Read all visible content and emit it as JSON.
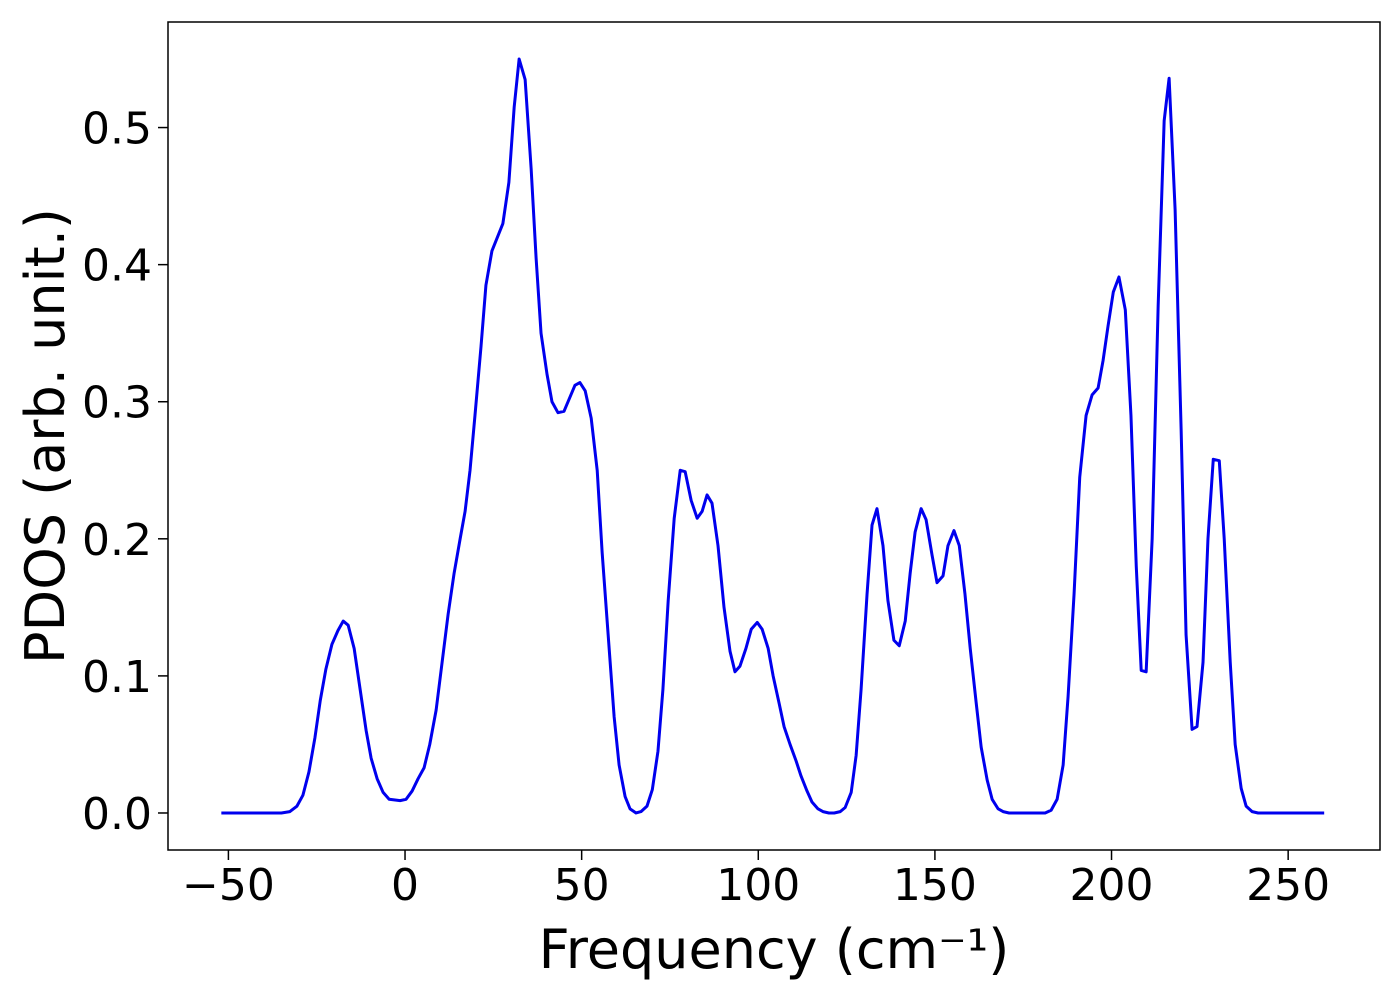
{
  "chart_data": {
    "type": "line",
    "xlabel": "Frequency (cm⁻¹)",
    "ylabel": "PDOS (arb. unit.)",
    "xlim": [
      -67.1,
      276
    ],
    "ylim": [
      -0.027,
      0.577
    ],
    "xticks": [
      {
        "value": -50,
        "label": "−50"
      },
      0,
      50,
      100,
      150,
      200,
      250
    ],
    "yticks": [
      {
        "value": 0,
        "label": "0.0"
      },
      0.1,
      0.2,
      0.3,
      0.4,
      0.5
    ],
    "series": [
      {
        "color": "#0000ee",
        "x": [
          -52,
          -35,
          -32.6,
          -30.6,
          -28.9,
          -27.2,
          -25.5,
          -24,
          -22.4,
          -20.7,
          -19,
          -17.5,
          -16.1,
          -14.4,
          -12.7,
          -11,
          -9.6,
          -7.9,
          -6.2,
          -4.5,
          -1.4,
          0.3,
          2,
          3.7,
          5.4,
          7,
          8.8,
          10.5,
          12.2,
          13.9,
          15.6,
          17,
          18.4,
          19.8,
          21.5,
          22.9,
          24.6,
          27.7,
          29.4,
          30.9,
          32.3,
          34,
          35.7,
          37.1,
          38.5,
          40.2,
          41.6,
          43.3,
          45,
          48.1,
          49.5,
          51,
          52.7,
          54.4,
          55.8,
          57.5,
          59.2,
          60.6,
          62.3,
          63.7,
          65.4,
          66.8,
          68.5,
          70,
          71.6,
          73,
          74.5,
          76.2,
          77.9,
          79.3,
          81,
          82.7,
          84.1,
          85.5,
          86.9,
          88.6,
          90.3,
          92,
          93.4,
          94.8,
          96.5,
          98,
          99.7,
          101.1,
          102.8,
          104.2,
          105.9,
          107.3,
          109,
          110.7,
          112.1,
          113.8,
          115.2,
          116.9,
          118.3,
          120,
          121.5,
          123.2,
          124.6,
          126.3,
          127.7,
          129.1,
          130.8,
          132.2,
          133.6,
          135.3,
          136.7,
          138.4,
          139.9,
          141.6,
          143,
          144.4,
          146.1,
          147.5,
          149.2,
          150.6,
          152.3,
          153.7,
          155.4,
          156.9,
          158.5,
          160,
          161.7,
          163.1,
          164.8,
          166.2,
          167.9,
          169.3,
          171,
          181.2,
          182.9,
          184.6,
          186.3,
          187.7,
          189.4,
          191,
          192.8,
          194.5,
          196.2,
          197.6,
          199,
          200.5,
          202.1,
          203.9,
          205.5,
          207,
          208.4,
          209.8,
          211.5,
          213.2,
          214.9,
          216.3,
          218,
          219.7,
          221.1,
          222.8,
          224.2,
          225.9,
          227.3,
          228.8,
          230.5,
          231.9,
          233.6,
          235,
          236.7,
          238.1,
          239.8,
          241.5,
          260.2
        ],
        "values": [
          0,
          0,
          0.001,
          0.005,
          0.013,
          0.03,
          0.055,
          0.082,
          0.105,
          0.123,
          0.133,
          0.14,
          0.137,
          0.12,
          0.09,
          0.06,
          0.04,
          0.025,
          0.015,
          0.01,
          0.009,
          0.01,
          0.016,
          0.025,
          0.033,
          0.05,
          0.075,
          0.11,
          0.145,
          0.175,
          0.2,
          0.22,
          0.25,
          0.29,
          0.34,
          0.385,
          0.41,
          0.43,
          0.46,
          0.515,
          0.55,
          0.535,
          0.47,
          0.405,
          0.35,
          0.32,
          0.3,
          0.292,
          0.293,
          0.312,
          0.314,
          0.308,
          0.288,
          0.25,
          0.19,
          0.13,
          0.07,
          0.035,
          0.012,
          0.003,
          0,
          0.001,
          0.005,
          0.017,
          0.045,
          0.09,
          0.155,
          0.215,
          0.25,
          0.249,
          0.228,
          0.215,
          0.22,
          0.232,
          0.226,
          0.195,
          0.15,
          0.118,
          0.103,
          0.107,
          0.12,
          0.134,
          0.139,
          0.134,
          0.12,
          0.1,
          0.08,
          0.063,
          0.05,
          0.038,
          0.027,
          0.016,
          0.008,
          0.003,
          0.001,
          0,
          0,
          0.001,
          0.004,
          0.015,
          0.042,
          0.09,
          0.16,
          0.21,
          0.222,
          0.195,
          0.155,
          0.126,
          0.122,
          0.14,
          0.175,
          0.205,
          0.222,
          0.214,
          0.188,
          0.168,
          0.173,
          0.195,
          0.206,
          0.195,
          0.16,
          0.12,
          0.08,
          0.048,
          0.024,
          0.01,
          0.003,
          0.001,
          0,
          0,
          0.002,
          0.01,
          0.035,
          0.085,
          0.16,
          0.245,
          0.29,
          0.305,
          0.31,
          0.33,
          0.355,
          0.38,
          0.391,
          0.367,
          0.29,
          0.18,
          0.104,
          0.103,
          0.2,
          0.37,
          0.505,
          0.536,
          0.44,
          0.28,
          0.13,
          0.061,
          0.063,
          0.11,
          0.2,
          0.258,
          0.257,
          0.2,
          0.11,
          0.05,
          0.018,
          0.005,
          0.001,
          0,
          0
        ]
      }
    ]
  }
}
